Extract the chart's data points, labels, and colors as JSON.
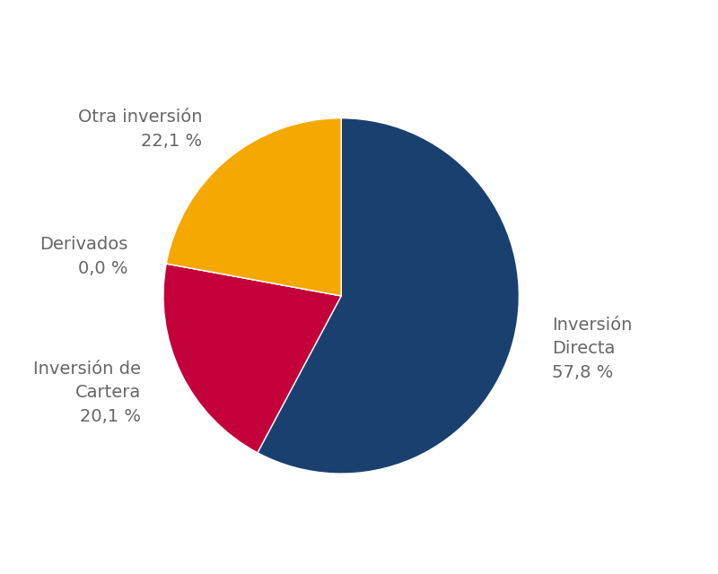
{
  "values": [
    57.8,
    20.1,
    0.0,
    22.1
  ],
  "colors": [
    "#1a4070",
    "#c4003a",
    "#f5a800",
    "#f5a800"
  ],
  "label_texts": [
    "Inversión\nDirecta\n57,8 %",
    "Inversión de\nCartera\n20,1 %",
    "Derivados\n0,0 %",
    "Otra inversión\n22,1 %"
  ],
  "text_color": "#666666",
  "font_size": 14,
  "startangle": 90,
  "background_color": "#ffffff",
  "figsize": [
    8.0,
    6.4
  ],
  "dpi": 100
}
